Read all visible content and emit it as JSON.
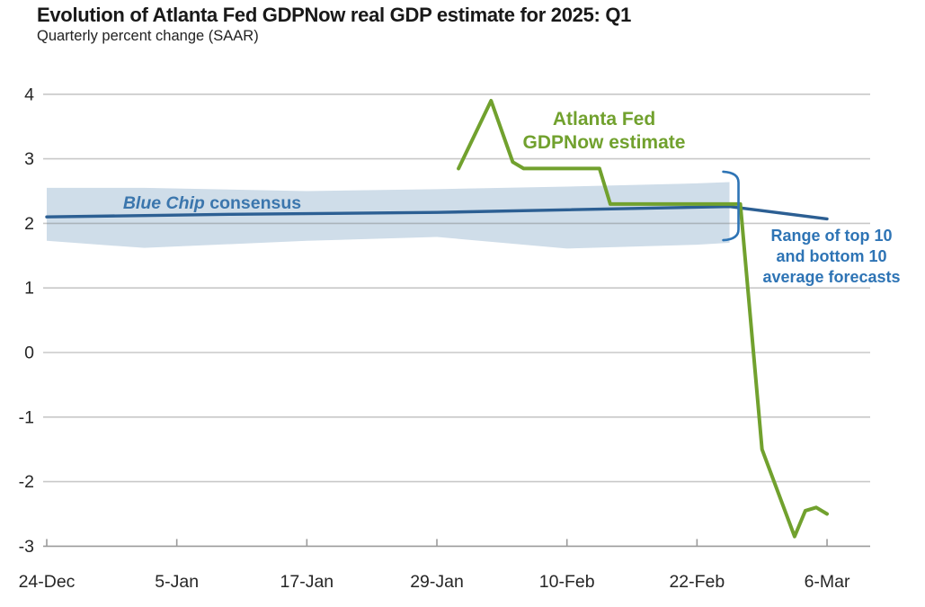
{
  "header": {
    "title": "Evolution of Atlanta Fed GDPNow real GDP estimate for 2025: Q1",
    "subtitle": "Quarterly percent change (SAAR)"
  },
  "annotations": {
    "gdpnow_line1": "Atlanta Fed",
    "gdpnow_line2": "GDPNow estimate",
    "bluechip_italic": "Blue Chip",
    "bluechip_rest": " consensus",
    "range_line1": "Range of top 10",
    "range_line2": "and bottom 10",
    "range_line3": "average forecasts"
  },
  "colors": {
    "gdpnow_green": "#71a12e",
    "bluechip_line": "#2c5f93",
    "band_fill": "#cfdde9",
    "annotation_blue": "#2e74b5",
    "gridline": "rgba(110,110,110,0.38)",
    "axis": "#9b9b9b",
    "tick_text": "#262626"
  },
  "chart_data": {
    "type": "line",
    "title": "Evolution of Atlanta Fed GDPNow real GDP estimate for 2025: Q1",
    "ylabel": "Quarterly percent change (SAAR)",
    "xlabel": "",
    "ylim": [
      -3,
      4
    ],
    "grid": true,
    "legend_position": "inline-annotations",
    "y_ticks": [
      4,
      3,
      2,
      1,
      0,
      -1,
      -2,
      -3
    ],
    "x_ticks": [
      "24-Dec",
      "5-Jan",
      "17-Jan",
      "29-Jan",
      "10-Feb",
      "22-Feb",
      "6-Mar"
    ],
    "series": [
      {
        "name": "Atlanta Fed GDPNow estimate",
        "color": "#71a12e",
        "points": [
          [
            "31-Jan",
            2.85
          ],
          [
            "3-Feb",
            3.9
          ],
          [
            "5-Feb",
            2.95
          ],
          [
            "6-Feb",
            2.85
          ],
          [
            "13-Feb",
            2.85
          ],
          [
            "14-Feb",
            2.3
          ],
          [
            "26-Feb",
            2.3
          ],
          [
            "28-Feb",
            -1.5
          ],
          [
            "3-Mar",
            -2.85
          ],
          [
            "4-Mar",
            -2.45
          ],
          [
            "5-Mar",
            -2.4
          ],
          [
            "6-Mar",
            -2.5
          ]
        ]
      },
      {
        "name": "Blue Chip consensus",
        "color": "#2c5f93",
        "points": [
          [
            "24-Dec",
            2.1
          ],
          [
            "10-Jan",
            2.14
          ],
          [
            "29-Jan",
            2.17
          ],
          [
            "10-Feb",
            2.21
          ],
          [
            "25-Feb",
            2.26
          ],
          [
            "6-Mar",
            2.07
          ]
        ]
      }
    ],
    "band": {
      "name": "Range of top 10 and bottom 10 average forecasts",
      "color": "#cfdde9",
      "points": [
        [
          "24-Dec",
          2.55,
          1.73
        ],
        [
          "2-Jan",
          2.55,
          1.62
        ],
        [
          "17-Jan",
          2.5,
          1.73
        ],
        [
          "29-Jan",
          2.53,
          1.79
        ],
        [
          "10-Feb",
          2.57,
          1.61
        ],
        [
          "22-Feb",
          2.62,
          1.67
        ],
        [
          "25-Feb",
          2.64,
          1.7
        ]
      ]
    }
  }
}
